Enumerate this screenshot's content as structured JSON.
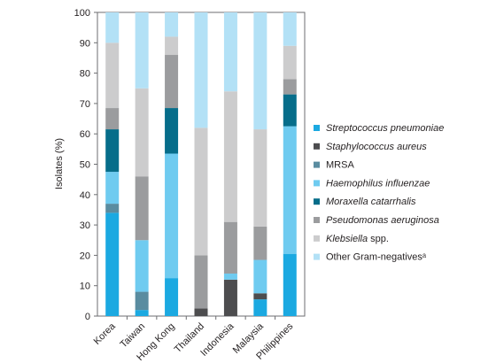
{
  "chart_data": {
    "type": "bar",
    "stacked": true,
    "ylabel": "Isolates (%)",
    "ylim": [
      0,
      100
    ],
    "yticks": [
      0,
      10,
      20,
      30,
      40,
      50,
      60,
      70,
      80,
      90,
      100
    ],
    "grid": false,
    "legend_position": "right",
    "categories": [
      "Korea",
      "Taiwan",
      "Hong Kong",
      "Thailand",
      "Indonesia",
      "Malaysia",
      "Philippines"
    ],
    "series": [
      {
        "name": "Streptococcus pneumoniae",
        "name_parts": [
          {
            "text": "Streptococcus pneumoniae",
            "italic": true
          }
        ],
        "color": "#1ba9e1",
        "values": [
          34,
          2,
          12.5,
          0,
          0,
          5.5,
          20.5
        ]
      },
      {
        "name": "Staphylococcus aureus",
        "name_parts": [
          {
            "text": "Staphylococcus aureus",
            "italic": true
          }
        ],
        "color": "#4d4d4f",
        "values": [
          0,
          0,
          0,
          2.5,
          12,
          2,
          0
        ]
      },
      {
        "name": "MRSA",
        "name_parts": [
          {
            "text": "MRSA",
            "italic": false
          }
        ],
        "color": "#5a8ca0",
        "values": [
          3,
          6,
          0,
          0,
          0,
          0,
          0
        ]
      },
      {
        "name": "Haemophilus influenzae",
        "name_parts": [
          {
            "text": "Haemophilus influenzae",
            "italic": true
          }
        ],
        "color": "#6fcbf0",
        "values": [
          10.5,
          17,
          41,
          0,
          2,
          11,
          42
        ]
      },
      {
        "name": "Moraxella catarrhalis",
        "name_parts": [
          {
            "text": "Moraxella catarrhalis",
            "italic": true
          }
        ],
        "color": "#066d8a",
        "values": [
          14,
          0,
          15,
          0,
          0,
          0,
          10.5
        ]
      },
      {
        "name": "Pseudomonas aeruginosa",
        "name_parts": [
          {
            "text": "Pseudomonas aeruginosa",
            "italic": true
          }
        ],
        "color": "#9b9c9e",
        "values": [
          7,
          21,
          17.5,
          17.5,
          17,
          11,
          5
        ]
      },
      {
        "name": "Klebsiella spp.",
        "name_parts": [
          {
            "text": "Klebsiella",
            "italic": true
          },
          {
            "text": " spp.",
            "italic": false
          }
        ],
        "color": "#cccccd",
        "values": [
          21.5,
          29,
          6,
          42,
          43,
          32,
          11
        ]
      },
      {
        "name": "Other Gram-negativesᵃ",
        "name_parts": [
          {
            "text": "Other Gram-negativesᵃ",
            "italic": false
          }
        ],
        "color": "#b3e1f6",
        "values": [
          10,
          25,
          8,
          38,
          26,
          38.5,
          11
        ]
      }
    ]
  }
}
